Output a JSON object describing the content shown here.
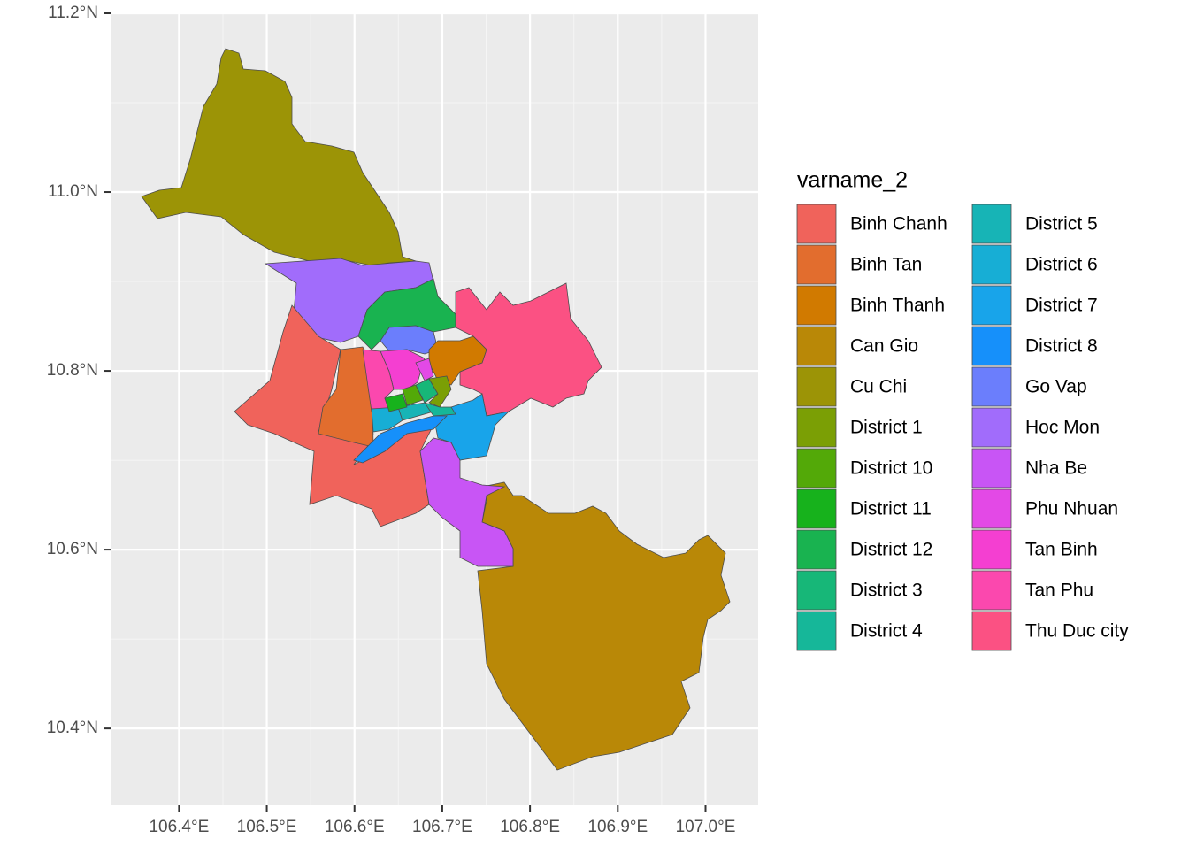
{
  "chart_data": {
    "type": "map",
    "legend_title": "varname_2",
    "xlim": [
      106.322,
      107.06
    ],
    "ylim": [
      10.314,
      11.2
    ],
    "xticks": [
      {
        "value": 106.4,
        "label": "106.4°E"
      },
      {
        "value": 106.5,
        "label": "106.5°E"
      },
      {
        "value": 106.6,
        "label": "106.6°E"
      },
      {
        "value": 106.7,
        "label": "106.7°E"
      },
      {
        "value": 106.8,
        "label": "106.8°E"
      },
      {
        "value": 106.9,
        "label": "106.9°E"
      },
      {
        "value": 107.0,
        "label": "107.0°E"
      }
    ],
    "yticks": [
      {
        "value": 10.4,
        "label": "10.4°N"
      },
      {
        "value": 10.6,
        "label": "10.6°N"
      },
      {
        "value": 10.8,
        "label": "10.8°N"
      },
      {
        "value": 11.0,
        "label": "11.0°N"
      },
      {
        "value": 11.2,
        "label": "11.2°N"
      }
    ],
    "grid": true,
    "series": [
      {
        "name": "Binh Chanh",
        "color": "#F0635B"
      },
      {
        "name": "Binh Tan",
        "color": "#E26D2E"
      },
      {
        "name": "Binh Thanh",
        "color": "#D17A00"
      },
      {
        "name": "Can Gio",
        "color": "#B98807"
      },
      {
        "name": "Cu Chi",
        "color": "#9C9406"
      },
      {
        "name": "District 1",
        "color": "#7B9F05"
      },
      {
        "name": "District 10",
        "color": "#53A908"
      },
      {
        "name": "District 11",
        "color": "#17B21C"
      },
      {
        "name": "District 12",
        "color": "#19B350"
      },
      {
        "name": "District 3",
        "color": "#17B778"
      },
      {
        "name": "District 4",
        "color": "#16B799"
      },
      {
        "name": "District 5",
        "color": "#17B4B6"
      },
      {
        "name": "District 6",
        "color": "#17AED5"
      },
      {
        "name": "District 7",
        "color": "#18A4EA"
      },
      {
        "name": "District 8",
        "color": "#1690FA"
      },
      {
        "name": "Go Vap",
        "color": "#6B7EFC"
      },
      {
        "name": "Hoc Mon",
        "color": "#A16CFB"
      },
      {
        "name": "Nha Be",
        "color": "#C855F5"
      },
      {
        "name": "Phu Nhuan",
        "color": "#E349E6"
      },
      {
        "name": "Tan Binh",
        "color": "#F43FD1"
      },
      {
        "name": "Tan Phu",
        "color": "#FB48AE"
      },
      {
        "name": "Thu Duc city",
        "color": "#FB5183"
      }
    ]
  }
}
